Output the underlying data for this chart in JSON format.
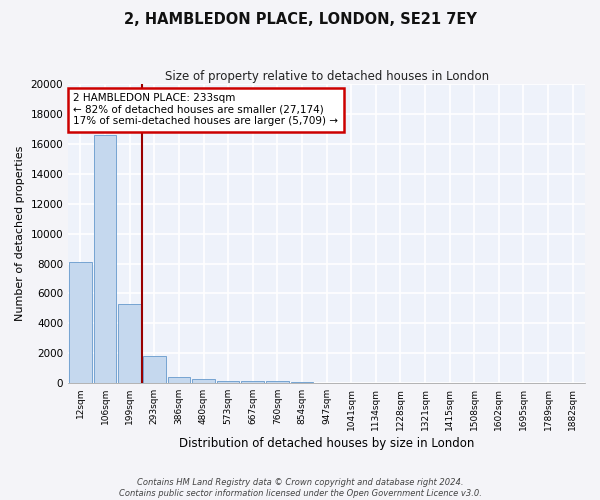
{
  "title": "2, HAMBLEDON PLACE, LONDON, SE21 7EY",
  "subtitle": "Size of property relative to detached houses in London",
  "xlabel": "Distribution of detached houses by size in London",
  "ylabel": "Number of detached properties",
  "bar_color": "#c5d8ee",
  "bar_edge_color": "#6699cc",
  "background_color": "#eef2fa",
  "grid_color": "#ffffff",
  "categories": [
    "12sqm",
    "106sqm",
    "199sqm",
    "293sqm",
    "386sqm",
    "480sqm",
    "573sqm",
    "667sqm",
    "760sqm",
    "854sqm",
    "947sqm",
    "1041sqm",
    "1134sqm",
    "1228sqm",
    "1321sqm",
    "1415sqm",
    "1508sqm",
    "1602sqm",
    "1695sqm",
    "1789sqm",
    "1882sqm"
  ],
  "values": [
    8100,
    16600,
    5300,
    1800,
    420,
    290,
    165,
    130,
    130,
    100,
    0,
    0,
    0,
    0,
    0,
    0,
    0,
    0,
    0,
    0,
    0
  ],
  "ylim": [
    0,
    20000
  ],
  "yticks": [
    0,
    2000,
    4000,
    6000,
    8000,
    10000,
    12000,
    14000,
    16000,
    18000,
    20000
  ],
  "property_line_x": 2.5,
  "property_line_color": "#990000",
  "annotation_line1": "2 HAMBLEDON PLACE: 233sqm",
  "annotation_line2": "← 82% of detached houses are smaller (27,174)",
  "annotation_line3": "17% of semi-detached houses are larger (5,709) →",
  "annotation_box_color": "#ffffff",
  "annotation_box_edge": "#cc0000",
  "footer_line1": "Contains HM Land Registry data © Crown copyright and database right 2024.",
  "footer_line2": "Contains public sector information licensed under the Open Government Licence v3.0.",
  "fig_bg": "#f4f4f8"
}
